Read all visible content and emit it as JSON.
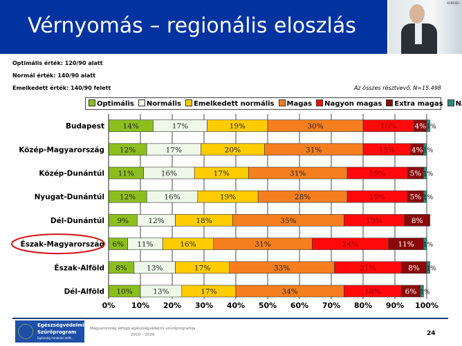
{
  "header": {
    "title": "Vérnyomás – regionális eloszlás",
    "photo_brand": "KARDIER"
  },
  "notes": [
    "Optimális érték: 120/90 alatt",
    "Normál érték: 140/90 alatt",
    "Emelkedett érték: 140/90 felett"
  ],
  "sample_note": "Az összes résztvevő, N=15.498",
  "footer": {
    "logo_line1": "Egészségvédelmi",
    "logo_line2": "Szűrőprogram",
    "logo_line3": "Egészség mindenki előtt...",
    "program": "Magyarország átfogó egészségvédelmi szűrőprogramja",
    "years": "2010 – 2020",
    "page": "24"
  },
  "chart_data": {
    "type": "bar",
    "orientation": "horizontal",
    "stacked": true,
    "percent": true,
    "xlim": [
      0,
      100
    ],
    "xticks": [
      "0%",
      "10%",
      "20%",
      "30%",
      "40%",
      "50%",
      "60%",
      "70%",
      "80%",
      "90%",
      "100%"
    ],
    "grid": true,
    "legend_placement": "top",
    "categories": [
      "Budapest",
      "Közép-Magyarország",
      "Közép-Dunántúl",
      "Nyugat-Dunántúl",
      "Dél-Dunántúl",
      "Észak-Magyarország",
      "Észak-Alföld",
      "Dél-Alföld"
    ],
    "highlighted_category": "Észak-Magyarország",
    "series": [
      {
        "name": "Optimális",
        "color": "#8cbf1e",
        "values": [
          14,
          12,
          11,
          12,
          9,
          6,
          8,
          10
        ]
      },
      {
        "name": "Normális",
        "color": "#eef7e8",
        "values": [
          17,
          17,
          16,
          16,
          12,
          11,
          13,
          13
        ]
      },
      {
        "name": "Emelkedett normális",
        "color": "#ffcc00",
        "values": [
          19,
          20,
          17,
          19,
          18,
          16,
          17,
          17
        ]
      },
      {
        "name": "Magas",
        "color": "#f57f1f",
        "values": [
          30,
          31,
          31,
          28,
          35,
          31,
          33,
          34
        ]
      },
      {
        "name": "Nagyon magas",
        "color": "#ff0a0a",
        "values": [
          16,
          15,
          19,
          19,
          19,
          24,
          21,
          18
        ]
      },
      {
        "name": "Extra magas",
        "color": "#8a0a0a",
        "values": [
          4,
          4,
          5,
          5,
          8,
          11,
          8,
          6
        ]
      },
      {
        "name": "NA",
        "color": "#2a8c7c",
        "values": [
          1,
          1,
          1,
          1,
          0,
          1,
          1,
          1
        ]
      }
    ]
  }
}
